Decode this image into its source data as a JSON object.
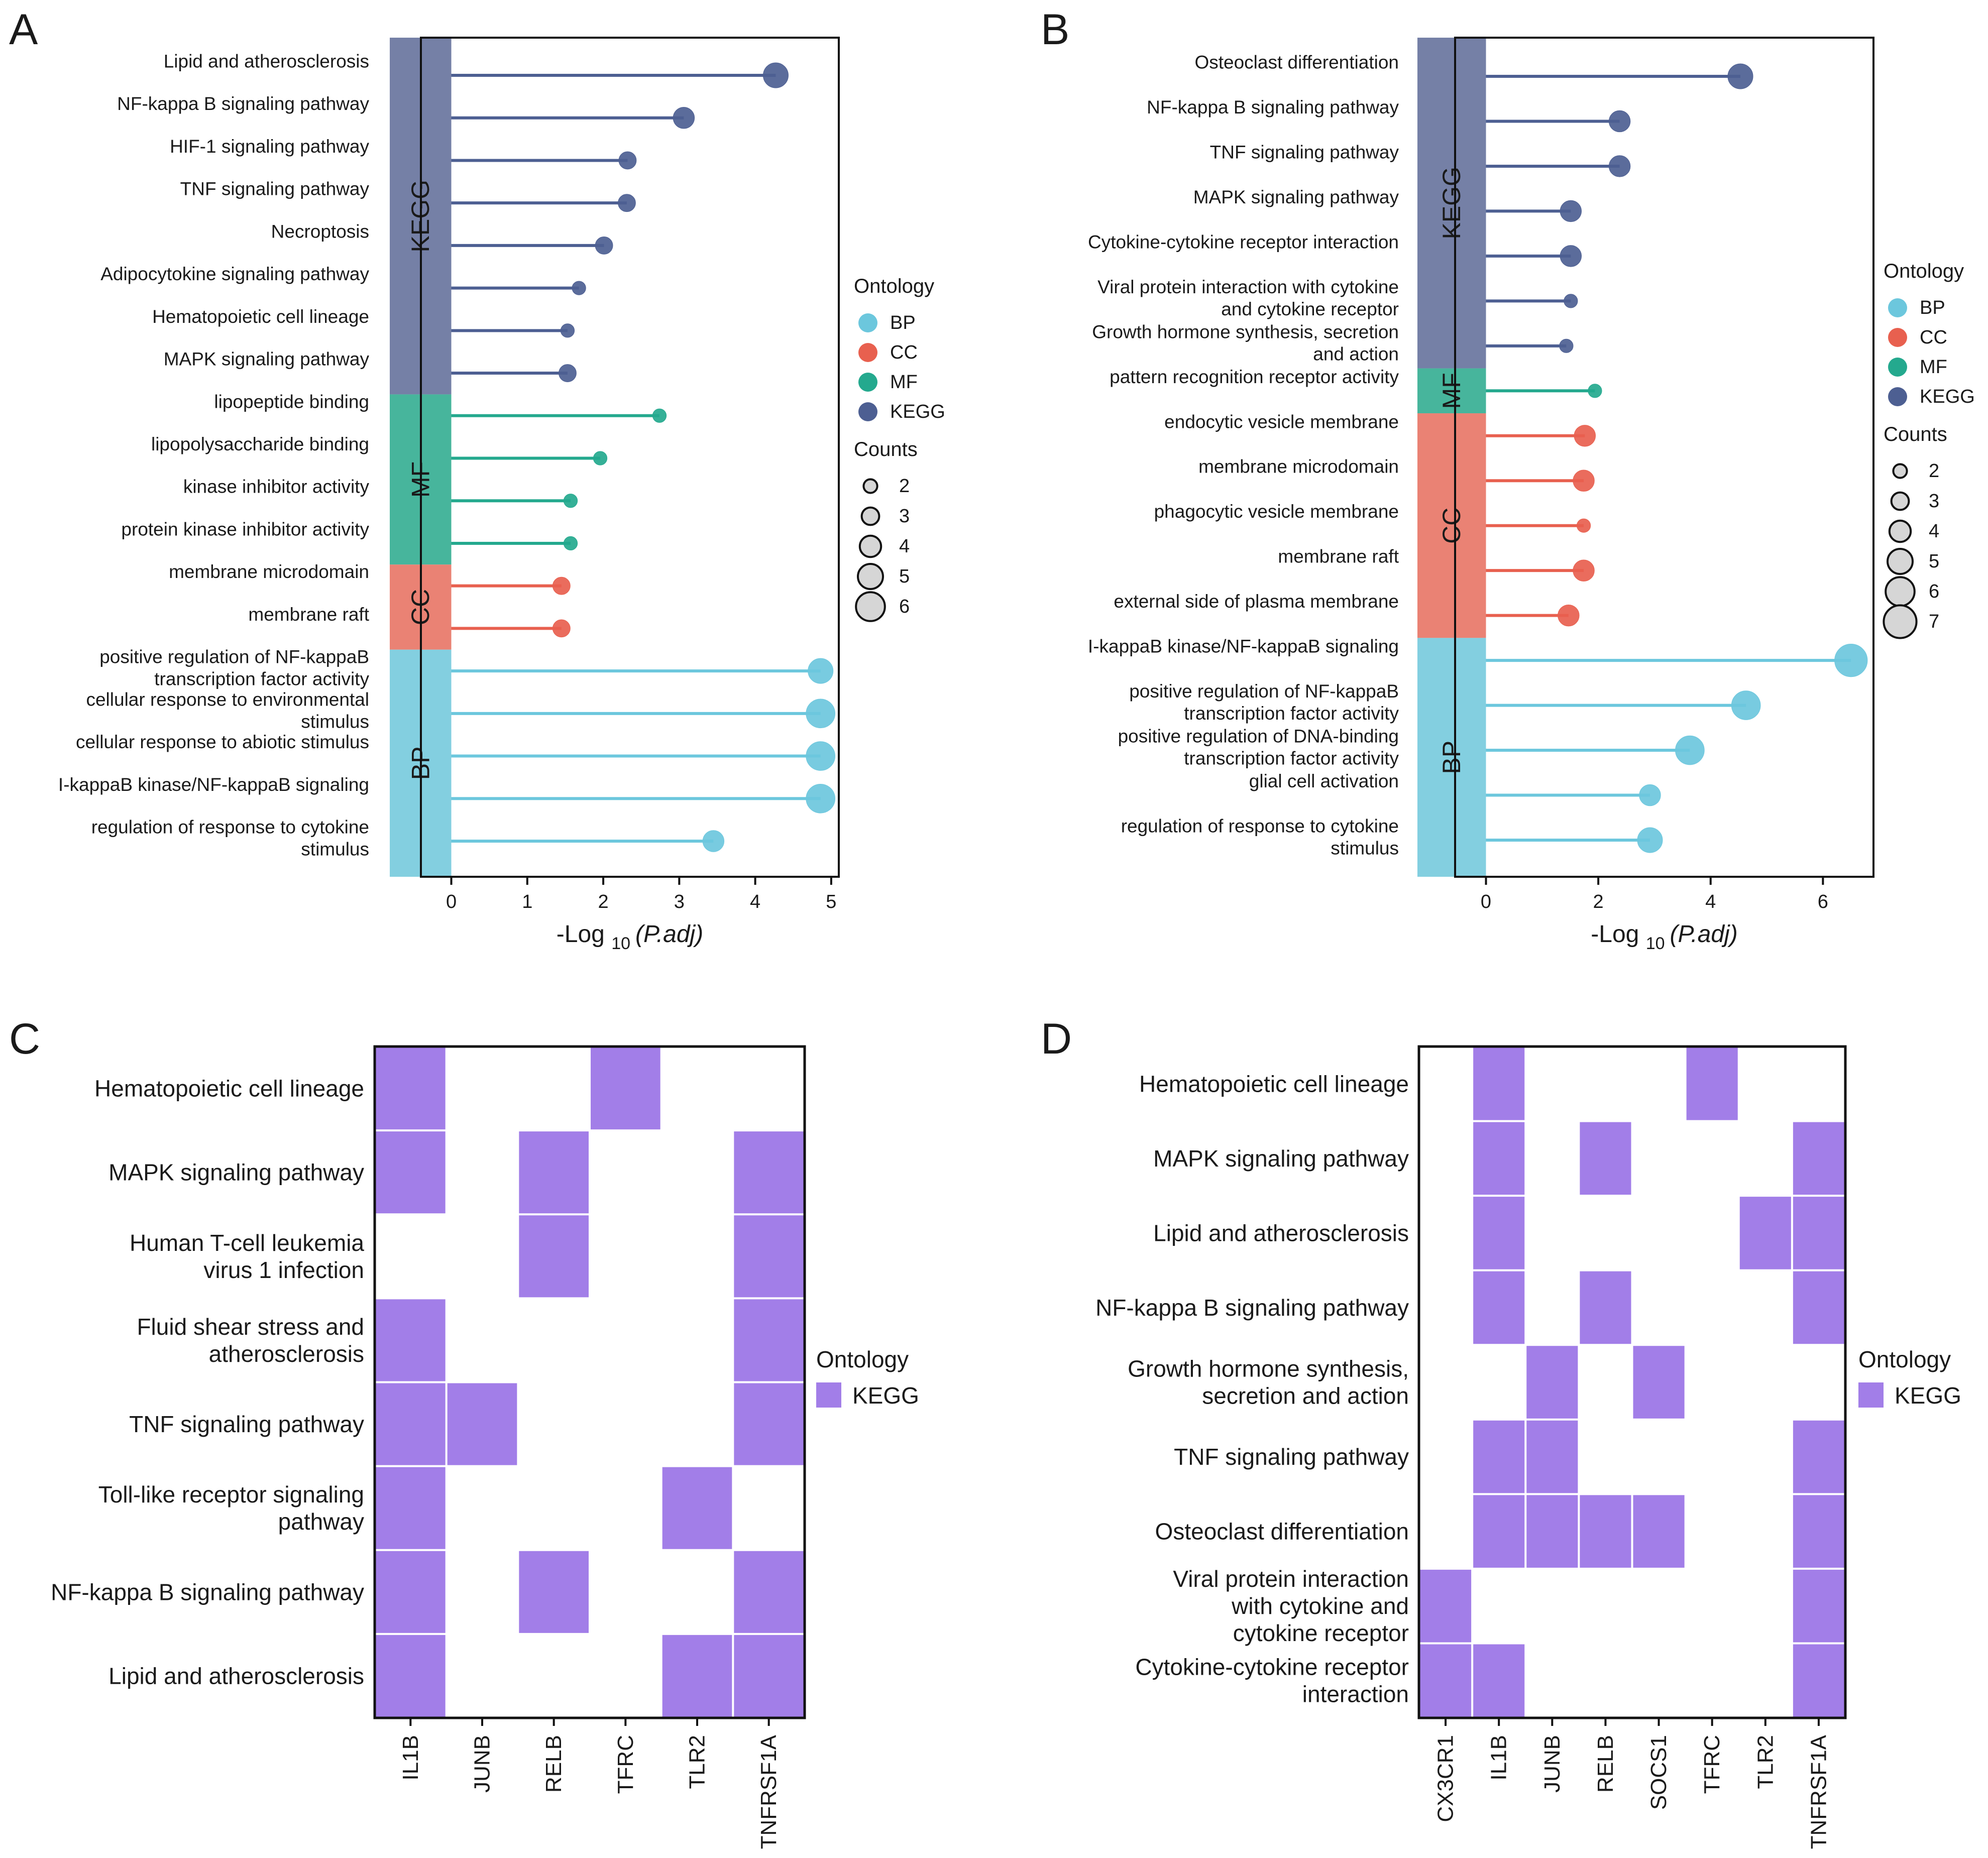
{
  "colors": {
    "BP": "#6cc7dd",
    "CC": "#e8604f",
    "MF": "#24a98e",
    "KEGG": "#4d5f92",
    "BP_band": "#83cfe0",
    "CC_band": "#ea8274",
    "MF_band": "#47b59c",
    "KEGG_band": "#7580a6",
    "heat_fill": "#a27ee8"
  },
  "chart_data": [
    {
      "panel_label": "A",
      "type": "lollipop",
      "xlabel_prefix": "-Log",
      "xlabel_sub": "10",
      "xlabel_italic": "(P.adj)",
      "xlim": [
        -0.4,
        5.1
      ],
      "xticks": [
        0,
        1,
        2,
        3,
        4,
        5
      ],
      "terms": [
        {
          "label": "Lipid and atherosclerosis",
          "ontology": "KEGG",
          "value": 4.27,
          "count": 5
        },
        {
          "label": "NF-kappa B signaling pathway",
          "ontology": "KEGG",
          "value": 3.06,
          "count": 4
        },
        {
          "label": "HIF-1 signaling pathway",
          "ontology": "KEGG",
          "value": 2.32,
          "count": 3
        },
        {
          "label": "TNF signaling pathway",
          "ontology": "KEGG",
          "value": 2.31,
          "count": 3
        },
        {
          "label": "Necroptosis",
          "ontology": "KEGG",
          "value": 2.01,
          "count": 3
        },
        {
          "label": "Adipocytokine signaling pathway",
          "ontology": "KEGG",
          "value": 1.68,
          "count": 2
        },
        {
          "label": "Hematopoietic cell lineage",
          "ontology": "KEGG",
          "value": 1.53,
          "count": 2
        },
        {
          "label": "MAPK signaling pathway",
          "ontology": "KEGG",
          "value": 1.53,
          "count": 3
        },
        {
          "label": "lipopeptide binding",
          "ontology": "MF",
          "value": 2.74,
          "count": 2
        },
        {
          "label": "lipopolysaccharide binding",
          "ontology": "MF",
          "value": 1.96,
          "count": 2
        },
        {
          "label": "kinase inhibitor activity",
          "ontology": "MF",
          "value": 1.57,
          "count": 2
        },
        {
          "label": "protein kinase inhibitor activity",
          "ontology": "MF",
          "value": 1.57,
          "count": 2
        },
        {
          "label": "membrane microdomain",
          "ontology": "CC",
          "value": 1.45,
          "count": 3
        },
        {
          "label": "membrane raft",
          "ontology": "CC",
          "value": 1.45,
          "count": 3
        },
        {
          "label": "positive regulation of NF-kappaB transcription factor activity",
          "label_lines": [
            "positive regulation of NF-kappaB",
            "transcription factor activity"
          ],
          "ontology": "BP",
          "value": 4.86,
          "count": 5
        },
        {
          "label": "cellular response to environmental stimulus",
          "label_lines": [
            "cellular response to environmental",
            "stimulus"
          ],
          "ontology": "BP",
          "value": 4.86,
          "count": 6
        },
        {
          "label": "cellular response to abiotic stimulus",
          "ontology": "BP",
          "value": 4.86,
          "count": 6
        },
        {
          "label": "I-kappaB kinase/NF-kappaB signaling",
          "ontology": "BP",
          "value": 4.86,
          "count": 6
        },
        {
          "label": "regulation of response to cytokine stimulus",
          "label_lines": [
            "regulation of response to cytokine",
            "stimulus"
          ],
          "ontology": "BP",
          "value": 3.45,
          "count": 4
        }
      ],
      "legend": {
        "ontology_title": "Ontology",
        "ontology_items": [
          "BP",
          "CC",
          "MF",
          "KEGG"
        ],
        "counts_title": "Counts",
        "counts": [
          2,
          3,
          4,
          5,
          6
        ]
      }
    },
    {
      "panel_label": "B",
      "type": "lollipop",
      "xlabel_prefix": "-Log",
      "xlabel_sub": "10",
      "xlabel_italic": "(P.adj)",
      "xlim": [
        -0.55,
        6.9
      ],
      "xticks": [
        0,
        2,
        4,
        6
      ],
      "terms": [
        {
          "label": "Osteoclast differentiation",
          "ontology": "KEGG",
          "value": 4.53,
          "count": 5
        },
        {
          "label": "NF-kappa B signaling pathway",
          "ontology": "KEGG",
          "value": 2.38,
          "count": 4
        },
        {
          "label": "TNF signaling pathway",
          "ontology": "KEGG",
          "value": 2.38,
          "count": 4
        },
        {
          "label": "MAPK signaling pathway",
          "ontology": "KEGG",
          "value": 1.51,
          "count": 4
        },
        {
          "label": "Cytokine-cytokine receptor interaction",
          "ontology": "KEGG",
          "value": 1.51,
          "count": 4
        },
        {
          "label": "Viral protein interaction with cytokine and cytokine receptor",
          "label_lines": [
            "Viral protein interaction with cytokine",
            "and cytokine receptor"
          ],
          "ontology": "KEGG",
          "value": 1.51,
          "count": 2
        },
        {
          "label": "Growth hormone synthesis, secretion and action",
          "label_lines": [
            "Growth hormone synthesis, secretion",
            "and action"
          ],
          "ontology": "KEGG",
          "value": 1.43,
          "count": 2
        },
        {
          "label": "pattern recognition receptor activity",
          "ontology": "MF",
          "value": 1.94,
          "count": 2
        },
        {
          "label": "endocytic vesicle membrane",
          "ontology": "CC",
          "value": 1.76,
          "count": 4
        },
        {
          "label": "membrane microdomain",
          "ontology": "CC",
          "value": 1.74,
          "count": 4
        },
        {
          "label": "phagocytic vesicle membrane",
          "ontology": "CC",
          "value": 1.74,
          "count": 2
        },
        {
          "label": "membrane raft",
          "ontology": "CC",
          "value": 1.74,
          "count": 4
        },
        {
          "label": "external side of plasma membrane",
          "ontology": "CC",
          "value": 1.47,
          "count": 4
        },
        {
          "label": "I-kappaB kinase/NF-kappaB signaling",
          "ontology": "BP",
          "value": 6.5,
          "count": 7
        },
        {
          "label": "positive regulation of NF-kappaB transcription factor activity",
          "label_lines": [
            "positive regulation of NF-kappaB",
            "transcription factor activity"
          ],
          "ontology": "BP",
          "value": 4.63,
          "count": 6
        },
        {
          "label": "positive regulation of DNA-binding transcription factor activity",
          "label_lines": [
            "positive regulation of DNA-binding",
            "transcription factor activity"
          ],
          "ontology": "BP",
          "value": 3.63,
          "count": 6
        },
        {
          "label": "glial cell activation",
          "ontology": "BP",
          "value": 2.92,
          "count": 4
        },
        {
          "label": "regulation of response to cytokine stimulus",
          "label_lines": [
            "regulation of response to cytokine",
            "stimulus"
          ],
          "ontology": "BP",
          "value": 2.92,
          "count": 5
        }
      ],
      "legend": {
        "ontology_title": "Ontology",
        "ontology_items": [
          "BP",
          "CC",
          "MF",
          "KEGG"
        ],
        "counts_title": "Counts",
        "counts": [
          2,
          3,
          4,
          5,
          6,
          7
        ]
      }
    },
    {
      "panel_label": "C",
      "type": "heatmap",
      "rows": [
        {
          "label": "Hematopoietic cell lineage",
          "lines": [
            "Hematopoietic cell lineage"
          ]
        },
        {
          "label": "MAPK signaling pathway",
          "lines": [
            "MAPK signaling pathway"
          ]
        },
        {
          "label": "Human T-cell leukemia virus 1 infection",
          "lines": [
            "Human T-cell leukemia",
            "virus 1 infection"
          ]
        },
        {
          "label": "Fluid shear stress and atherosclerosis",
          "lines": [
            "Fluid shear stress and",
            "atherosclerosis"
          ]
        },
        {
          "label": "TNF signaling pathway",
          "lines": [
            "TNF signaling pathway"
          ]
        },
        {
          "label": "Toll-like receptor signaling pathway",
          "lines": [
            "Toll-like receptor signaling",
            "pathway"
          ]
        },
        {
          "label": "NF-kappa B signaling pathway",
          "lines": [
            "NF-kappa B signaling pathway"
          ]
        },
        {
          "label": "Lipid and atherosclerosis",
          "lines": [
            "Lipid and atherosclerosis"
          ]
        }
      ],
      "columns": [
        "IL1B",
        "JUNB",
        "RELB",
        "TFRC",
        "TLR2",
        "TNFRSF1A"
      ],
      "cells": [
        [
          1,
          0,
          0,
          1,
          0,
          0
        ],
        [
          1,
          0,
          1,
          0,
          0,
          1
        ],
        [
          0,
          0,
          1,
          0,
          0,
          1
        ],
        [
          1,
          0,
          0,
          0,
          0,
          1
        ],
        [
          1,
          1,
          0,
          0,
          0,
          1
        ],
        [
          1,
          0,
          0,
          0,
          1,
          0
        ],
        [
          1,
          0,
          1,
          0,
          0,
          1
        ],
        [
          1,
          0,
          0,
          0,
          1,
          1
        ]
      ],
      "legend": {
        "title": "Ontology",
        "item": "KEGG"
      }
    },
    {
      "panel_label": "D",
      "type": "heatmap",
      "rows": [
        {
          "label": "Hematopoietic cell lineage",
          "lines": [
            "Hematopoietic cell lineage"
          ]
        },
        {
          "label": "MAPK signaling pathway",
          "lines": [
            "MAPK signaling pathway"
          ]
        },
        {
          "label": "Lipid and atherosclerosis",
          "lines": [
            "Lipid and atherosclerosis"
          ]
        },
        {
          "label": "NF-kappa B signaling pathway",
          "lines": [
            "NF-kappa B signaling pathway"
          ]
        },
        {
          "label": "Growth hormone synthesis, secretion and action",
          "lines": [
            "Growth hormone synthesis,",
            "secretion and action"
          ]
        },
        {
          "label": "TNF signaling pathway",
          "lines": [
            "TNF signaling pathway"
          ]
        },
        {
          "label": "Osteoclast differentiation",
          "lines": [
            "Osteoclast differentiation"
          ]
        },
        {
          "label": "Viral protein interaction with cytokine and cytokine receptor",
          "lines": [
            "Viral protein interaction",
            "with cytokine and",
            "cytokine receptor"
          ]
        },
        {
          "label": "Cytokine-cytokine receptor interaction",
          "lines": [
            "Cytokine-cytokine receptor",
            "interaction"
          ]
        }
      ],
      "columns": [
        "CX3CR1",
        "IL1B",
        "JUNB",
        "RELB",
        "SOCS1",
        "TFRC",
        "TLR2",
        "TNFRSF1A"
      ],
      "cells": [
        [
          0,
          1,
          0,
          0,
          0,
          1,
          0,
          0
        ],
        [
          0,
          1,
          0,
          1,
          0,
          0,
          0,
          1
        ],
        [
          0,
          1,
          0,
          0,
          0,
          0,
          1,
          1
        ],
        [
          0,
          1,
          0,
          1,
          0,
          0,
          0,
          1
        ],
        [
          0,
          0,
          1,
          0,
          1,
          0,
          0,
          0
        ],
        [
          0,
          1,
          1,
          0,
          0,
          0,
          0,
          1
        ],
        [
          0,
          1,
          1,
          1,
          1,
          0,
          0,
          1
        ],
        [
          1,
          0,
          0,
          0,
          0,
          0,
          0,
          1
        ],
        [
          1,
          1,
          0,
          0,
          0,
          0,
          0,
          1
        ]
      ],
      "legend": {
        "title": "Ontology",
        "item": "KEGG"
      }
    }
  ]
}
